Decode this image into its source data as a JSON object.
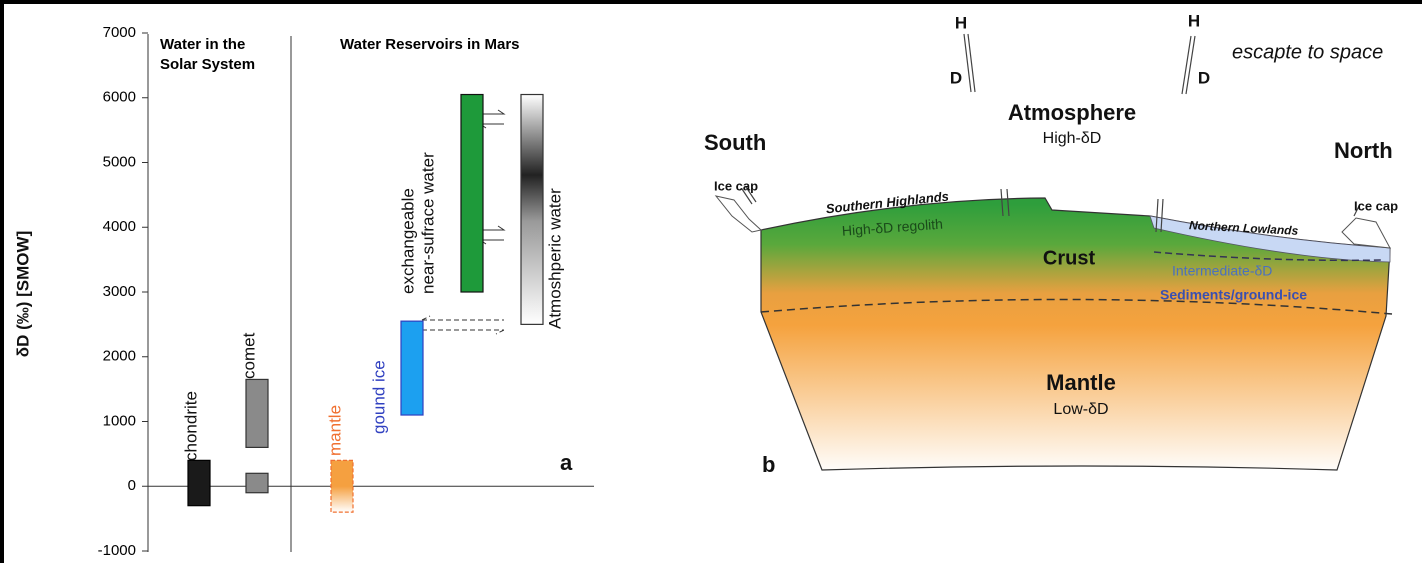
{
  "chart_data": {
    "type": "range-bar",
    "y_label": "δD (‰) [SMOW]",
    "ylim": [
      -1000,
      7000
    ],
    "yticks": [
      -1000,
      0,
      1000,
      2000,
      3000,
      4000,
      5000,
      6000,
      7000
    ],
    "group_titles": [
      [
        "Water in the",
        "Solar System"
      ],
      [
        "Water Reservoirs in Mars"
      ]
    ],
    "panel_label": "a",
    "series": [
      {
        "label": [
          "chondrite"
        ],
        "color": "#1a1a1a",
        "ranges": [
          [
            -300,
            400
          ]
        ]
      },
      {
        "label": [
          "comet"
        ],
        "color": "#8a8a8a",
        "ranges": [
          [
            600,
            1650
          ],
          [
            -100,
            200
          ]
        ]
      },
      {
        "label": [
          "mantle"
        ],
        "color": "#f5a040",
        "ranges": [
          [
            -400,
            400
          ]
        ]
      },
      {
        "label": [
          "gound ice"
        ],
        "color": "#1ca0f0",
        "ranges": [
          [
            1100,
            2550
          ]
        ]
      },
      {
        "label": [
          "exchangeable",
          "near-sufrace water"
        ],
        "color": "#1e9a3a",
        "ranges": [
          [
            3000,
            6050
          ]
        ]
      },
      {
        "label": [
          "Atmoshperic water"
        ],
        "color": "#555555",
        "ranges": [
          [
            2500,
            6050
          ]
        ]
      }
    ]
  },
  "diagram": {
    "h_left": "H",
    "d_left": "D",
    "h_right": "H",
    "d_right": "D",
    "escape": "escapte to space",
    "atmosphere": "Atmosphere",
    "atmosphere_sub": "High-δD",
    "south": "South",
    "north": "North",
    "ice_cap_left": "Ice cap",
    "ice_cap_right": "Ice cap",
    "southern_highlands": "Southern Highlands",
    "regolith": "High-δD regolith",
    "crust": "Crust",
    "northern_lowlands": "Northern Lowlands",
    "intermediate": "Intermediate-δD",
    "sediments": "Sediments/ground-ice",
    "mantle": "Mantle",
    "mantle_sub": "Low-δD",
    "panel_label": "b"
  }
}
